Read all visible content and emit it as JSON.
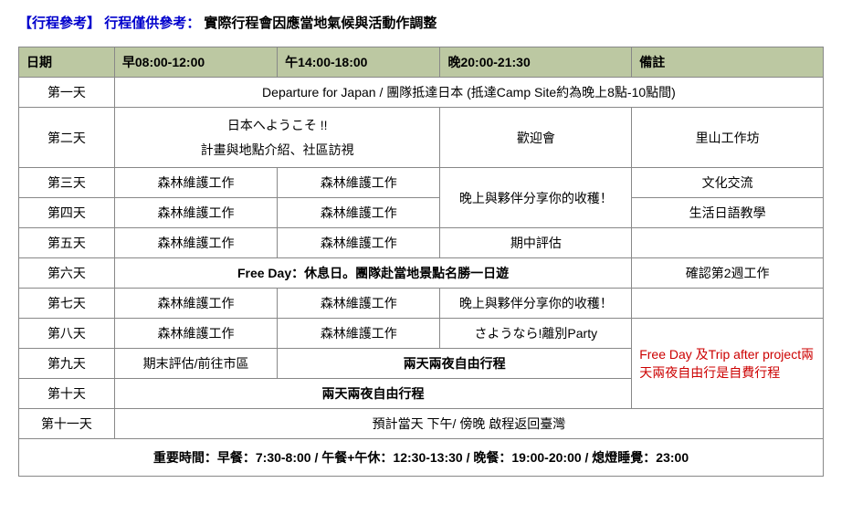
{
  "heading": {
    "tag": "【行程參考】",
    "caution": "行程僅供參考：",
    "rest": "實際行程會因應當地氣候與活動作調整"
  },
  "headers": {
    "date": "日期",
    "morning": "早08:00-12:00",
    "afternoon": "午14:00-18:00",
    "evening": "晚20:00-21:30",
    "note": "備註"
  },
  "days": {
    "d1": "第一天",
    "d2": "第二天",
    "d3": "第三天",
    "d4": "第四天",
    "d5": "第五天",
    "d6": "第六天",
    "d7": "第七天",
    "d8": "第八天",
    "d9": "第九天",
    "d10": "第十天",
    "d11": "第十一天"
  },
  "cells": {
    "d1_full": "Departure for Japan / 團隊抵達日本 (抵達Camp Site約為晚上8點-10點間)",
    "d2_ma_line1": "日本へようこそ !!",
    "d2_ma_line2": "計畫與地點介紹、社區訪視",
    "d2_e": "歡迎會",
    "d2_note": "里山工作坊",
    "d3_m": "森林維護工作",
    "d3_a": "森林維護工作",
    "d3d4_e": "晚上與夥伴分享你的收穫！",
    "d3_note": "文化交流",
    "d4_m": "森林維護工作",
    "d4_a": "森林維護工作",
    "d4_note": "生活日語教學",
    "d5_m": "森林維護工作",
    "d5_a": "森林維護工作",
    "d5_e": "期中評估",
    "d6_free": "Free Day：休息日。團隊赴當地景點名勝一日遊",
    "d6_note": "確認第2週工作",
    "d7_m": "森林維護工作",
    "d7_a": "森林維護工作",
    "d7_e": "晚上與夥伴分享你的收穫！",
    "d8_m": "森林維護工作",
    "d8_a": "森林維護工作",
    "d8_e": "さようなら!離別Party",
    "d8_note_red": "Free Day 及Trip after project兩天兩夜自由行是自費行程",
    "d9_m": "期末評估/前往市區",
    "d9_ae": "兩天兩夜自由行程",
    "d10_mae": "兩天兩夜自由行程",
    "d11_full": "預計當天 下午/ 傍晚 啟程返回臺灣"
  },
  "footer": "重要時間：早餐：7:30-8:00 / 午餐+午休：12:30-13:30 / 晚餐：19:00-20:00 / 熄燈睡覺：23:00",
  "colors": {
    "header_bg": "#bcc8a2",
    "highlight_bg": "#7ba6d8",
    "link_blue": "#0000cc",
    "note_red": "#cc0000",
    "border": "#888888",
    "page_bg": "#ffffff"
  }
}
